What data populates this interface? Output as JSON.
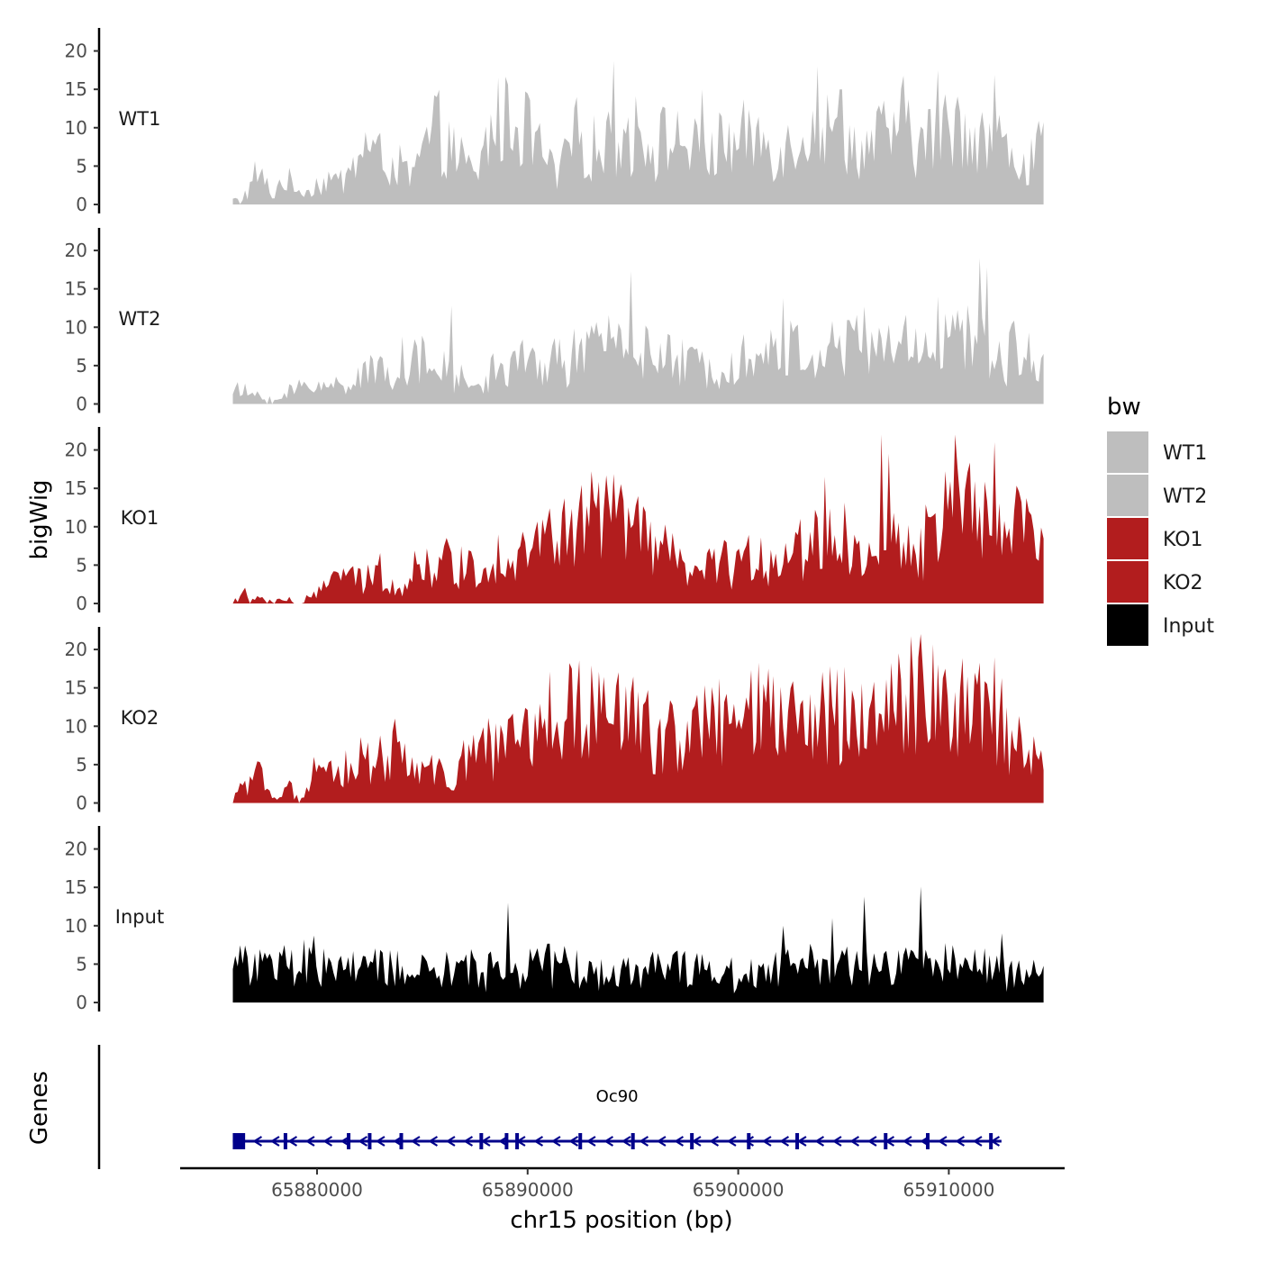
{
  "chart_data": {
    "type": "area",
    "xlabel": "chr15 position (bp)",
    "ylabel": "bigWig",
    "genes_label": "Genes",
    "legend_title": "bw",
    "legend_position": "right",
    "grid": false,
    "xlim": [
      65873500,
      65915500
    ],
    "region": [
      65876000,
      65914500
    ],
    "x_ticks": [
      65880000,
      65890000,
      65900000,
      65910000
    ],
    "x_tick_labels": [
      "65880000",
      "65890000",
      "65900000",
      "65910000"
    ],
    "ylim": [
      0,
      23
    ],
    "y_ticks": [
      0,
      5,
      10,
      15,
      20
    ],
    "y_tick_labels": [
      "0",
      "5",
      "10",
      "15",
      "20"
    ],
    "tracks": [
      {
        "name": "WT1",
        "color": "#bebebe",
        "profile": [
          [
            0,
            1
          ],
          [
            0.01,
            0.7
          ],
          [
            0.02,
            2
          ],
          [
            0.03,
            5
          ],
          [
            0.04,
            3
          ],
          [
            0.05,
            1
          ],
          [
            0.06,
            4
          ],
          [
            0.08,
            2
          ],
          [
            0.1,
            2.5
          ],
          [
            0.12,
            4
          ],
          [
            0.13,
            3
          ],
          [
            0.15,
            6
          ],
          [
            0.16,
            9
          ],
          [
            0.18,
            7
          ],
          [
            0.2,
            6
          ],
          [
            0.22,
            4
          ],
          [
            0.24,
            9
          ],
          [
            0.25,
            11
          ],
          [
            0.27,
            8
          ],
          [
            0.3,
            4
          ],
          [
            0.32,
            12
          ],
          [
            0.35,
            13
          ],
          [
            0.37,
            10
          ],
          [
            0.4,
            4
          ],
          [
            0.42,
            10
          ],
          [
            0.45,
            8
          ],
          [
            0.47,
            9
          ],
          [
            0.5,
            11
          ],
          [
            0.52,
            9
          ],
          [
            0.55,
            10
          ],
          [
            0.58,
            7
          ],
          [
            0.6,
            8
          ],
          [
            0.62,
            9
          ],
          [
            0.65,
            10
          ],
          [
            0.68,
            8
          ],
          [
            0.7,
            11
          ],
          [
            0.72,
            12
          ],
          [
            0.75,
            9
          ],
          [
            0.78,
            8
          ],
          [
            0.8,
            10
          ],
          [
            0.83,
            12
          ],
          [
            0.85,
            9
          ],
          [
            0.88,
            11
          ],
          [
            0.9,
            13
          ],
          [
            0.92,
            10
          ],
          [
            0.95,
            9
          ],
          [
            0.97,
            6
          ],
          [
            1,
            8
          ]
        ],
        "peaks": [
          [
            0.47,
            18.7
          ],
          [
            0.58,
            15
          ],
          [
            0.72,
            18
          ],
          [
            0.75,
            15
          ],
          [
            0.87,
            17.5
          ],
          [
            0.94,
            16.9
          ],
          [
            0.46,
            10.8
          ],
          [
            0.6,
            12
          ]
        ]
      },
      {
        "name": "WT2",
        "color": "#bebebe",
        "profile": [
          [
            0,
            2
          ],
          [
            0.02,
            1.5
          ],
          [
            0.04,
            1
          ],
          [
            0.05,
            0
          ],
          [
            0.06,
            1
          ],
          [
            0.08,
            2.5
          ],
          [
            0.1,
            3
          ],
          [
            0.12,
            2.5
          ],
          [
            0.15,
            4
          ],
          [
            0.18,
            5
          ],
          [
            0.2,
            5.5
          ],
          [
            0.22,
            7
          ],
          [
            0.25,
            5
          ],
          [
            0.28,
            4
          ],
          [
            0.3,
            2
          ],
          [
            0.32,
            5
          ],
          [
            0.35,
            6
          ],
          [
            0.38,
            6
          ],
          [
            0.4,
            6.5
          ],
          [
            0.45,
            8
          ],
          [
            0.48,
            11
          ],
          [
            0.5,
            8
          ],
          [
            0.52,
            7
          ],
          [
            0.55,
            6
          ],
          [
            0.6,
            5.5
          ],
          [
            0.62,
            7
          ],
          [
            0.65,
            7
          ],
          [
            0.7,
            8
          ],
          [
            0.73,
            7.5
          ],
          [
            0.77,
            9
          ],
          [
            0.8,
            8
          ],
          [
            0.83,
            9
          ],
          [
            0.87,
            9
          ],
          [
            0.9,
            10
          ],
          [
            0.92,
            8
          ],
          [
            0.95,
            7
          ],
          [
            0.97,
            8
          ],
          [
            1,
            6
          ]
        ],
        "peaks": [
          [
            0.49,
            17.3
          ],
          [
            0.45,
            14.5
          ],
          [
            0.92,
            19
          ],
          [
            0.93,
            17.8
          ],
          [
            0.68,
            13.8
          ],
          [
            0.27,
            12.8
          ],
          [
            0.78,
            12.7
          ],
          [
            0.87,
            14
          ]
        ]
      },
      {
        "name": "KO1",
        "color": "#b21d1e",
        "profile": [
          [
            0,
            0
          ],
          [
            0.01,
            1.5
          ],
          [
            0.015,
            2.5
          ],
          [
            0.02,
            0
          ],
          [
            0.04,
            1
          ],
          [
            0.05,
            0
          ],
          [
            0.06,
            1
          ],
          [
            0.08,
            0
          ],
          [
            0.1,
            0.8
          ],
          [
            0.11,
            2
          ],
          [
            0.12,
            5
          ],
          [
            0.14,
            4
          ],
          [
            0.16,
            3
          ],
          [
            0.18,
            5
          ],
          [
            0.2,
            3
          ],
          [
            0.21,
            2
          ],
          [
            0.22,
            5
          ],
          [
            0.25,
            6
          ],
          [
            0.28,
            6
          ],
          [
            0.3,
            5
          ],
          [
            0.33,
            7
          ],
          [
            0.35,
            8
          ],
          [
            0.38,
            9
          ],
          [
            0.42,
            11
          ],
          [
            0.45,
            13
          ],
          [
            0.48,
            12
          ],
          [
            0.52,
            8
          ],
          [
            0.55,
            6
          ],
          [
            0.57,
            4
          ],
          [
            0.6,
            6
          ],
          [
            0.63,
            6
          ],
          [
            0.66,
            7
          ],
          [
            0.7,
            8
          ],
          [
            0.72,
            10
          ],
          [
            0.75,
            10
          ],
          [
            0.78,
            7
          ],
          [
            0.8,
            5
          ],
          [
            0.82,
            10
          ],
          [
            0.85,
            9
          ],
          [
            0.88,
            13
          ],
          [
            0.9,
            13
          ],
          [
            0.92,
            14
          ],
          [
            0.95,
            12
          ],
          [
            0.97,
            11
          ],
          [
            1,
            10
          ]
        ],
        "peaks": [
          [
            0.46,
            16.7
          ],
          [
            0.8,
            22
          ],
          [
            0.89,
            22
          ],
          [
            0.94,
            21
          ],
          [
            0.73,
            16.5
          ],
          [
            0.81,
            19.5
          ],
          [
            0.5,
            14
          ]
        ]
      },
      {
        "name": "KO2",
        "color": "#b21d1e",
        "profile": [
          [
            0,
            0
          ],
          [
            0.01,
            3
          ],
          [
            0.02,
            2
          ],
          [
            0.03,
            4
          ],
          [
            0.04,
            3
          ],
          [
            0.05,
            1
          ],
          [
            0.055,
            0
          ],
          [
            0.06,
            2
          ],
          [
            0.07,
            3
          ],
          [
            0.08,
            0
          ],
          [
            0.09,
            1
          ],
          [
            0.1,
            4
          ],
          [
            0.12,
            4
          ],
          [
            0.14,
            5
          ],
          [
            0.16,
            7
          ],
          [
            0.2,
            7
          ],
          [
            0.22,
            5
          ],
          [
            0.24,
            6
          ],
          [
            0.26,
            4
          ],
          [
            0.27,
            1
          ],
          [
            0.29,
            8
          ],
          [
            0.32,
            8
          ],
          [
            0.35,
            10
          ],
          [
            0.38,
            10
          ],
          [
            0.4,
            12
          ],
          [
            0.43,
            14
          ],
          [
            0.46,
            13
          ],
          [
            0.5,
            12
          ],
          [
            0.55,
            10
          ],
          [
            0.6,
            12
          ],
          [
            0.65,
            13
          ],
          [
            0.7,
            11
          ],
          [
            0.72,
            13
          ],
          [
            0.75,
            14
          ],
          [
            0.78,
            14
          ],
          [
            0.8,
            13
          ],
          [
            0.84,
            16
          ],
          [
            0.87,
            15
          ],
          [
            0.9,
            14
          ],
          [
            0.95,
            12
          ],
          [
            0.97,
            9
          ],
          [
            1,
            7
          ]
        ],
        "peaks": [
          [
            0.39,
            17.1
          ],
          [
            0.85,
            22
          ],
          [
            0.82,
            19.5
          ],
          [
            0.94,
            19
          ],
          [
            0.66,
            17.5
          ],
          [
            0.2,
            11
          ],
          [
            0.88,
            17.5
          ]
        ]
      },
      {
        "name": "Input",
        "color": "#000000",
        "profile": [
          [
            0,
            7
          ],
          [
            0.05,
            5
          ],
          [
            0.1,
            6
          ],
          [
            0.15,
            5
          ],
          [
            0.2,
            5
          ],
          [
            0.25,
            4.5
          ],
          [
            0.3,
            5
          ],
          [
            0.35,
            5
          ],
          [
            0.4,
            6
          ],
          [
            0.45,
            4
          ],
          [
            0.5,
            5
          ],
          [
            0.55,
            6
          ],
          [
            0.6,
            4
          ],
          [
            0.65,
            5
          ],
          [
            0.7,
            6
          ],
          [
            0.75,
            5
          ],
          [
            0.8,
            5
          ],
          [
            0.85,
            6
          ],
          [
            0.9,
            5
          ],
          [
            0.95,
            5
          ],
          [
            1,
            4
          ]
        ],
        "peaks": [
          [
            0.34,
            13
          ],
          [
            0.78,
            13.8
          ],
          [
            0.85,
            15.1
          ],
          [
            0.74,
            11
          ],
          [
            0.68,
            10
          ],
          [
            0.95,
            9
          ]
        ]
      }
    ],
    "genes": [
      {
        "name": "Oc90",
        "strand": "-",
        "color": "#00008b",
        "start": 65876000,
        "end": 65912500,
        "exons": [
          65876500,
          65878500,
          65881500,
          65882500,
          65884000,
          65887800,
          65889000,
          65889500,
          65892500,
          65895000,
          65897800,
          65900500,
          65902800,
          65907000,
          65909000,
          65912000
        ]
      }
    ],
    "legend": [
      {
        "label": "WT1",
        "color": "#bebebe"
      },
      {
        "label": "WT2",
        "color": "#bebebe"
      },
      {
        "label": "KO1",
        "color": "#b21d1e"
      },
      {
        "label": "KO2",
        "color": "#b21d1e"
      },
      {
        "label": "Input",
        "color": "#000000"
      }
    ]
  }
}
